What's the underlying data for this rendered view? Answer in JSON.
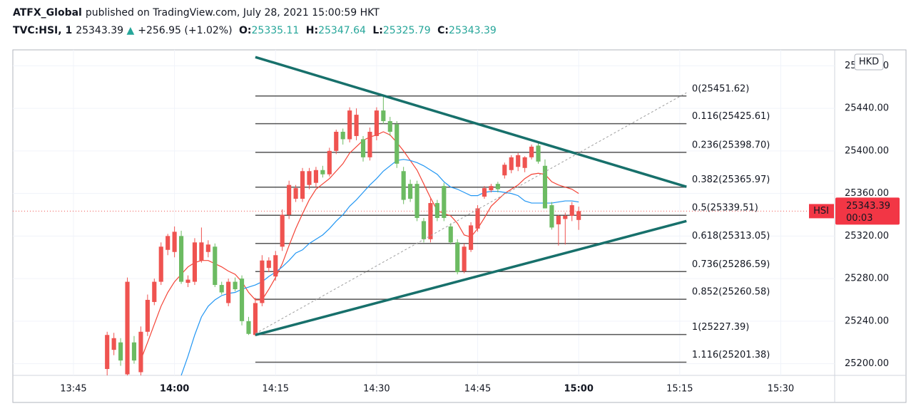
{
  "header": {
    "publisher": "ATFX_Global",
    "published": "published on TradingView.com, July 28, 2021 15:00:59 HKT",
    "symbol": "TVC:HSI, 1",
    "arrow": "▲",
    "change": "+256.95 (+1.02%)",
    "o_label": "O:",
    "h_label": "H:",
    "l_label": "L:",
    "c_label": "C:",
    "currency": "HKD",
    "ticker_tag": "HSI",
    "countdown": "00:03"
  },
  "chart_data": {
    "type": "candlestick",
    "x": [
      830,
      831,
      832,
      833,
      834,
      835,
      836,
      837,
      838,
      839,
      840,
      841,
      842,
      843,
      844,
      845,
      846,
      847,
      848,
      849,
      850,
      851,
      852,
      853,
      854,
      855,
      856,
      857,
      858,
      859,
      860,
      861,
      862,
      863,
      864,
      865,
      866,
      867,
      868,
      869,
      870,
      871,
      872,
      873,
      874,
      875,
      876,
      877,
      878,
      879,
      880,
      881,
      882,
      883,
      884,
      885,
      886,
      887,
      888,
      889,
      890,
      891,
      892,
      893,
      894,
      895,
      896,
      897,
      898,
      899,
      900
    ],
    "open": [
      25195,
      25213,
      25220,
      25190,
      25220,
      25192,
      25230,
      25258,
      25277,
      25307,
      25305,
      25320,
      25276,
      25277,
      25297,
      25305,
      25310,
      25274,
      25257,
      25277,
      25280,
      25240,
      25227,
      25257,
      25290,
      25282,
      25310,
      25340,
      25355,
      25355,
      25368,
      25370,
      25382,
      25378,
      25400,
      25418,
      25411,
      25414,
      25411,
      25394,
      25414,
      25438,
      25428,
      25425,
      25381,
      25369,
      25369,
      25334,
      25317,
      25351,
      25367,
      25329,
      25314,
      25287,
      25307,
      25327,
      25357,
      25363,
      25369,
      25377,
      25382,
      25385,
      25384,
      25394,
      25405,
      25386,
      25349,
      25331,
      25336,
      25339,
      25335.11
    ],
    "high": [
      25230,
      25229,
      25224,
      25281,
      25226,
      25235,
      25265,
      25280,
      25314,
      25322,
      25329,
      25325,
      25283,
      25318,
      25328,
      25316,
      25313,
      25277,
      25280,
      25281,
      25283,
      25244,
      25262,
      25302,
      25300,
      25306,
      25345,
      25372,
      25368,
      25384,
      25384,
      25385,
      25386,
      25403,
      25420,
      25421,
      25441,
      25440,
      25414,
      25422,
      25441,
      25451.62,
      25432,
      25428,
      25385,
      25373,
      25372,
      25337,
      25355,
      25354,
      25370,
      25332,
      25317,
      25313,
      25333,
      25349,
      25367,
      25369,
      25371,
      25389,
      25396,
      25398,
      25395,
      25406,
      25407.5,
      25392,
      25352,
      25340,
      25342,
      25352,
      25347.64
    ],
    "low": [
      25180,
      25208,
      25198,
      25185,
      25200,
      25185,
      25226,
      25255,
      25274,
      25302,
      25300,
      25275,
      25272,
      25274,
      25295,
      25300,
      25272,
      25265,
      25254,
      25268,
      25236,
      25227,
      25226,
      25254,
      25286,
      25278,
      25306,
      25336,
      25352,
      25352,
      25364,
      25366,
      25375,
      25376,
      25397,
      25406,
      25408,
      25410,
      25390,
      25391,
      25410,
      25425,
      25414,
      25384,
      25350,
      25352,
      25334,
      25314,
      25314,
      25334,
      25334,
      25312,
      25284,
      25285,
      25305,
      25324,
      25355,
      25361,
      25361,
      25374,
      25379,
      25381,
      25380,
      25392,
      25388,
      25346,
      25326,
      25311,
      25312,
      25334,
      25325.79
    ],
    "close": [
      25227,
      25224,
      25203,
      25277,
      25203,
      25230,
      25260,
      25277,
      25310,
      25320,
      25324,
      25277,
      25279,
      25314,
      25314,
      25312,
      25274,
      25267,
      25277,
      25270,
      25240,
      25228,
      25257,
      25297,
      25297,
      25302,
      25340,
      25368,
      25365,
      25381,
      25381,
      25382,
      25378,
      25400,
      25418,
      25411,
      25438,
      25434,
      25394,
      25418,
      25438,
      25428,
      25418,
      25388,
      25354,
      25355,
      25337,
      25317,
      25351,
      25337,
      25337,
      25314,
      25286,
      25310,
      25330,
      25346,
      25365,
      25367,
      25364,
      25387,
      25394,
      25396,
      25394,
      25404,
      25390,
      25346,
      25328,
      25339,
      25339,
      25349,
      25343.39
    ],
    "up_color": "#ef5350",
    "down_color": "#6cbb62",
    "overlays": [
      {
        "color": "#f44336",
        "values": [
          null,
          null,
          null,
          null,
          null,
          25203.5,
          25220,
          25237,
          25254,
          25267,
          25277,
          25284,
          25291,
          25295,
          25297,
          25297,
          25294,
          25291,
          25287,
          25284,
          25277,
          25267,
          25260,
          25260,
          25270,
          25281,
          25294,
          25311,
          25327,
          25341,
          25354,
          25364,
          25369,
          25374,
          25381,
          25388,
          25398,
          25404,
          25410,
          25413,
          25415,
          25418,
          25415,
          25408,
          25400,
          25391,
          25382,
          25369,
          25356,
          25344,
          25341,
          25339,
          25332,
          25321,
          25319,
          25327,
          25337,
          25348,
          25354,
          25360,
          25364,
          25368,
          25374,
          25378,
          25379,
          25378,
          25371,
          25368,
          25366,
          25364,
          25360
        ]
      },
      {
        "color": "#2196f3",
        "values": [
          null,
          null,
          null,
          null,
          null,
          null,
          null,
          null,
          null,
          null,
          null,
          25189,
          25207,
          25227,
          25244,
          25254,
          25260,
          25264,
          25266,
          25267,
          25270,
          25272,
          25274,
          25277,
          25282,
          25286,
          25291,
          25297,
          25304,
          25307,
          25313,
          25317,
          25321,
          25327,
          25334,
          25340,
          25348,
          25354,
          25361,
          25368,
          25374,
          25381,
          25386,
          25391,
          25392,
          25391,
          25389,
          25386,
          25382,
          25378,
          25371,
          25366,
          25364,
          25361,
          25358,
          25358,
          25361,
          25362,
          25362,
          25361,
          25360,
          25358,
          25353,
          25351,
          25351,
          25351,
          25351,
          25352,
          25353,
          25353,
          25352
        ]
      }
    ],
    "fib_x": [
      852,
      916
    ],
    "fib_levels": [
      {
        "value": 25451.62,
        "label": "0(25451.62)"
      },
      {
        "value": 25425.61,
        "label": "0.116(25425.61)"
      },
      {
        "value": 25398.7,
        "label": "0.236(25398.70)"
      },
      {
        "value": 25365.97,
        "label": "0.382(25365.97)"
      },
      {
        "value": 25339.51,
        "label": "0.5(25339.51)"
      },
      {
        "value": 25313.05,
        "label": "0.618(25313.05)"
      },
      {
        "value": 25286.59,
        "label": "0.736(25286.59)"
      },
      {
        "value": 25260.58,
        "label": "0.852(25260.58)"
      },
      {
        "value": 25227.39,
        "label": "1(25227.39)"
      },
      {
        "value": 25201.38,
        "label": "1.116(25201.38)"
      }
    ],
    "trendlines": [
      {
        "x": [
          852,
          916
        ],
        "y": [
          25488.2,
          25366.3
        ],
        "color": "#17706b",
        "dashed": false
      },
      {
        "x": [
          852,
          916
        ],
        "y": [
          25227,
          25334.1
        ],
        "color": "#17706b",
        "dashed": false
      },
      {
        "x": [
          852,
          916
        ],
        "y": [
          25228.3,
          25454.7
        ],
        "color": "#9e9e9e",
        "dashed": true
      }
    ],
    "xlim": [
      816,
      938
    ],
    "xticks": [
      {
        "value": 825,
        "label": "13:45"
      },
      {
        "value": 840,
        "label": "14:00"
      },
      {
        "value": 855,
        "label": "14:15"
      },
      {
        "value": 870,
        "label": "14:30"
      },
      {
        "value": 885,
        "label": "14:45"
      },
      {
        "value": 900,
        "label": "15:00"
      },
      {
        "value": 915,
        "label": "15:15"
      },
      {
        "value": 930,
        "label": "15:30"
      }
    ],
    "ylim": [
      25189,
      25495
    ],
    "yticks": [
      {
        "value": 25200,
        "label": "25200.00"
      },
      {
        "value": 25240,
        "label": "25240.00"
      },
      {
        "value": 25280,
        "label": "25280.00"
      },
      {
        "value": 25320,
        "label": "25320.00"
      },
      {
        "value": 25360,
        "label": "25360.00"
      },
      {
        "value": 25400,
        "label": "25400.00"
      },
      {
        "value": 25440,
        "label": "25440.00"
      },
      {
        "value": 25480,
        "label": "25480.00"
      }
    ],
    "grid": true
  }
}
